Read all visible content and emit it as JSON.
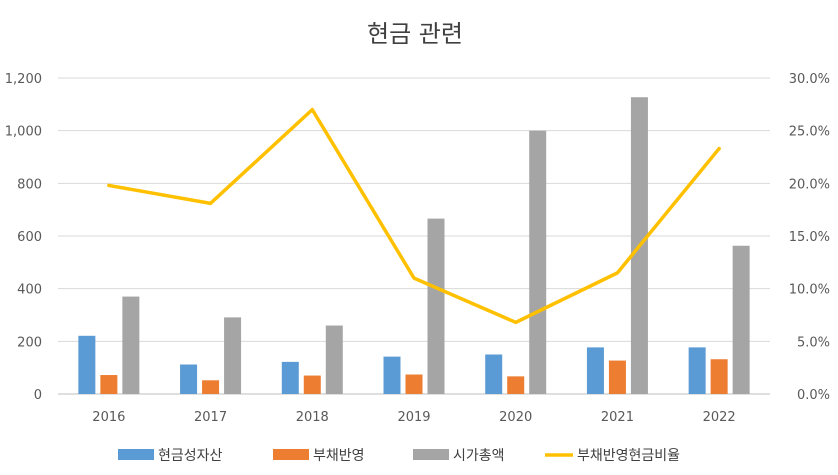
{
  "chart_data": {
    "type": "bar",
    "title": "현금 관련",
    "categories": [
      "2016",
      "2017",
      "2018",
      "2019",
      "2020",
      "2021",
      "2022"
    ],
    "y_left": {
      "ticks": [
        "1,200",
        "1,000",
        "800",
        "600",
        "400",
        "200",
        "0"
      ],
      "ylim": [
        0,
        1200
      ]
    },
    "y_right": {
      "ticks": [
        "30.0%",
        "25.0%",
        "20.0%",
        "15.0%",
        "10.0%",
        "5.0%",
        "0.0%"
      ],
      "ylim": [
        0,
        30
      ]
    },
    "grid": true,
    "legend_position": "bottom",
    "series": [
      {
        "name": "현금성자산",
        "kind": "bar",
        "axis": "left",
        "color": "#5B9BD5",
        "values": [
          221,
          112,
          122,
          142,
          150,
          177,
          177
        ]
      },
      {
        "name": "부채반영",
        "kind": "bar",
        "axis": "left",
        "color": "#ED7D31",
        "values": [
          72,
          52,
          70,
          74,
          67,
          127,
          132
        ]
      },
      {
        "name": "시가총액",
        "kind": "bar",
        "axis": "left",
        "color": "#A5A5A5",
        "values": [
          370,
          291,
          260,
          666,
          1000,
          1127,
          563
        ]
      },
      {
        "name": "부채반영현금비율",
        "kind": "line",
        "axis": "right",
        "color": "#FFC000",
        "values": [
          19.8,
          18.1,
          27.0,
          11.0,
          6.8,
          11.5,
          23.3
        ]
      }
    ]
  }
}
